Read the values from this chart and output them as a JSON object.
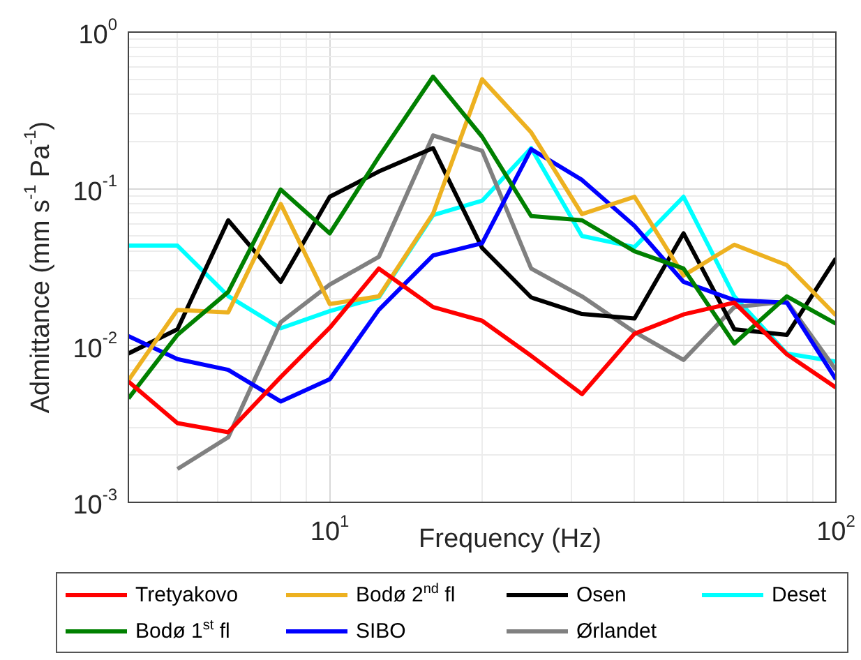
{
  "chart_data": {
    "type": "line",
    "xlabel": "Frequency (Hz)",
    "ylabel": "Admittance (mm s$^{-1}$ Pa$^{-1}$)",
    "x": [
      4,
      5,
      6.3,
      8,
      10,
      12.5,
      16,
      20,
      25,
      31.5,
      40,
      50,
      63,
      80,
      100
    ],
    "log": "xy",
    "grid": true,
    "legend": "bottom",
    "marker": "none",
    "line_style": "solid",
    "xlim": [
      4,
      100
    ],
    "ylim": [
      0.001,
      1
    ],
    "xticks": [
      {
        "value": 4,
        "label": null
      },
      {
        "value": 5,
        "label": null
      },
      {
        "value": 6,
        "label": null
      },
      {
        "value": 7,
        "label": null
      },
      {
        "value": 8,
        "label": null
      },
      {
        "value": 9,
        "label": null
      },
      {
        "value": 10,
        "label": "10$^{1}$"
      },
      {
        "value": 20,
        "label": null
      },
      {
        "value": 30,
        "label": null
      },
      {
        "value": 40,
        "label": null
      },
      {
        "value": 50,
        "label": null
      },
      {
        "value": 60,
        "label": null
      },
      {
        "value": 70,
        "label": null
      },
      {
        "value": 80,
        "label": null
      },
      {
        "value": 90,
        "label": null
      },
      {
        "value": 100,
        "label": "10$^{2}$"
      }
    ],
    "yticks": [
      {
        "value": 0.001,
        "label": "10$^{-3}$"
      },
      {
        "value": 0.002,
        "label": null
      },
      {
        "value": 0.003,
        "label": null
      },
      {
        "value": 0.004,
        "label": null
      },
      {
        "value": 0.005,
        "label": null
      },
      {
        "value": 0.006,
        "label": null
      },
      {
        "value": 0.007,
        "label": null
      },
      {
        "value": 0.008,
        "label": null
      },
      {
        "value": 0.009,
        "label": null
      },
      {
        "value": 0.01,
        "label": "10$^{-2}$"
      },
      {
        "value": 0.02,
        "label": null
      },
      {
        "value": 0.03,
        "label": null
      },
      {
        "value": 0.04,
        "label": null
      },
      {
        "value": 0.05,
        "label": null
      },
      {
        "value": 0.06,
        "label": null
      },
      {
        "value": 0.07,
        "label": null
      },
      {
        "value": 0.08,
        "label": null
      },
      {
        "value": 0.09,
        "label": null
      },
      {
        "value": 0.1,
        "label": "10$^{-1}$"
      },
      {
        "value": 0.2,
        "label": null
      },
      {
        "value": 0.3,
        "label": null
      },
      {
        "value": 0.4,
        "label": null
      },
      {
        "value": 0.5,
        "label": null
      },
      {
        "value": 0.6,
        "label": null
      },
      {
        "value": 0.7,
        "label": null
      },
      {
        "value": 0.8,
        "label": null
      },
      {
        "value": 0.9,
        "label": null
      },
      {
        "value": 1,
        "label": "10$^{0}$"
      }
    ],
    "series": [
      {
        "name": "Tretyakovo",
        "color": "#ff0000",
        "values": [
          0.0059,
          0.0032,
          0.0028,
          0.0063,
          0.013,
          0.031,
          0.0176,
          0.0144,
          0.0086,
          0.0049,
          0.0119,
          0.0158,
          0.0188,
          0.0088,
          0.0054
        ]
      },
      {
        "name": "Bodø 1$^{st}$ fl",
        "color": "#008000",
        "values": [
          0.0046,
          0.0117,
          0.022,
          0.099,
          0.052,
          0.16,
          0.52,
          0.215,
          0.067,
          0.063,
          0.04,
          0.031,
          0.0103,
          0.0206,
          0.0138
        ]
      },
      {
        "name": "Bodø 2$^{nd}$ fl",
        "color": "#edb120",
        "values": [
          0.006,
          0.0169,
          0.0163,
          0.08,
          0.0184,
          0.0206,
          0.0695,
          0.5,
          0.229,
          0.069,
          0.089,
          0.028,
          0.044,
          0.0326,
          0.0156
        ]
      },
      {
        "name": "SIBO",
        "color": "#0000ff",
        "values": [
          0.0115,
          0.0082,
          0.007,
          0.0044,
          0.0061,
          0.0169,
          0.0376,
          0.045,
          0.179,
          0.114,
          0.058,
          0.0255,
          0.0195,
          0.0188,
          0.0061
        ]
      },
      {
        "name": "Osen",
        "color": "#000000",
        "values": [
          0.0089,
          0.0127,
          0.063,
          0.0255,
          0.089,
          0.129,
          0.182,
          0.042,
          0.0203,
          0.0159,
          0.0149,
          0.052,
          0.0127,
          0.0117,
          0.036
        ]
      },
      {
        "name": "Ørlandet",
        "color": "#808080",
        "values": [
          null,
          0.00163,
          0.0026,
          0.0141,
          0.0245,
          0.0368,
          0.219,
          0.175,
          0.031,
          0.0206,
          0.0122,
          0.0081,
          0.0176,
          0.0191,
          0.007
        ]
      },
      {
        "name": "Deset",
        "color": "#00ffff",
        "values": [
          0.0434,
          0.0434,
          0.0207,
          0.0129,
          0.0166,
          0.0203,
          0.068,
          0.084,
          0.182,
          0.05,
          0.0425,
          0.089,
          0.0206,
          0.0089,
          0.0079
        ]
      }
    ]
  }
}
